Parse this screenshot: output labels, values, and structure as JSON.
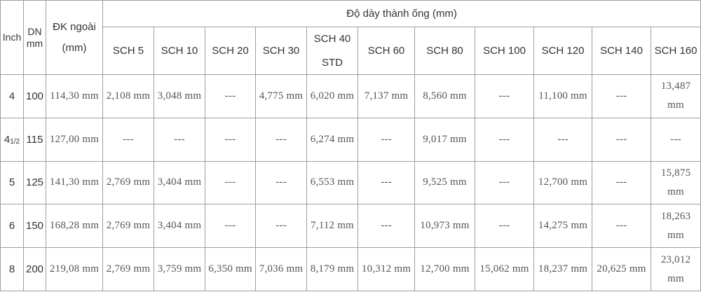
{
  "headers": {
    "inch": "Inch",
    "dn": "DN",
    "dn_unit": "mm",
    "od": "ĐK ngoài",
    "od_unit": "(mm)",
    "group": "Độ dày thành ống (mm)",
    "sch5": "SCH 5",
    "sch10": "SCH 10",
    "sch20": "SCH 20",
    "sch30": "SCH 30",
    "sch40": "SCH 40",
    "sch40_alt": "STD",
    "sch60": "SCH 60",
    "sch80": "SCH 80",
    "sch100": "SCH 100",
    "sch120": "SCH 120",
    "sch140": "SCH 140",
    "sch160": "SCH 160"
  },
  "rows": [
    {
      "inch": "4",
      "inch_sub": "",
      "dn": "100",
      "od": "114,30 mm",
      "sch5": "2,108 mm",
      "sch10": "3,048 mm",
      "sch20": "---",
      "sch30": "4,775 mm",
      "sch40": "6,020 mm",
      "sch60": "7,137 mm",
      "sch80": "8,560 mm",
      "sch100": "---",
      "sch120": "11,100 mm",
      "sch140": "---",
      "sch160": "13,487 mm"
    },
    {
      "inch": "4",
      "inch_sub": "1/2",
      "dn": "115",
      "od": "127,00 mm",
      "sch5": "---",
      "sch10": "---",
      "sch20": "---",
      "sch30": "---",
      "sch40": "6,274 mm",
      "sch60": "---",
      "sch80": "9,017 mm",
      "sch100": "---",
      "sch120": "---",
      "sch140": "---",
      "sch160": "---"
    },
    {
      "inch": "5",
      "inch_sub": "",
      "dn": "125",
      "od": "141,30 mm",
      "sch5": "2,769 mm",
      "sch10": "3,404 mm",
      "sch20": "---",
      "sch30": "---",
      "sch40": "6,553 mm",
      "sch60": "---",
      "sch80": "9,525 mm",
      "sch100": "---",
      "sch120": "12,700 mm",
      "sch140": "---",
      "sch160": "15,875 mm"
    },
    {
      "inch": "6",
      "inch_sub": "",
      "dn": "150",
      "od": "168,28 mm",
      "sch5": "2,769 mm",
      "sch10": "3,404 mm",
      "sch20": "---",
      "sch30": "---",
      "sch40": "7,112 mm",
      "sch60": "---",
      "sch80": "10,973 mm",
      "sch100": "---",
      "sch120": "14,275 mm",
      "sch140": "---",
      "sch160": "18,263 mm"
    },
    {
      "inch": "8",
      "inch_sub": "",
      "dn": "200",
      "od": "219,08 mm",
      "sch5": "2,769 mm",
      "sch10": "3,759 mm",
      "sch20": "6,350 mm",
      "sch30": "7,036 mm",
      "sch40": "8,179 mm",
      "sch60": "10,312 mm",
      "sch80": "12,700 mm",
      "sch100": "15,062 mm",
      "sch120": "18,237 mm",
      "sch140": "20,625 mm",
      "sch160": "23,012 mm"
    }
  ]
}
